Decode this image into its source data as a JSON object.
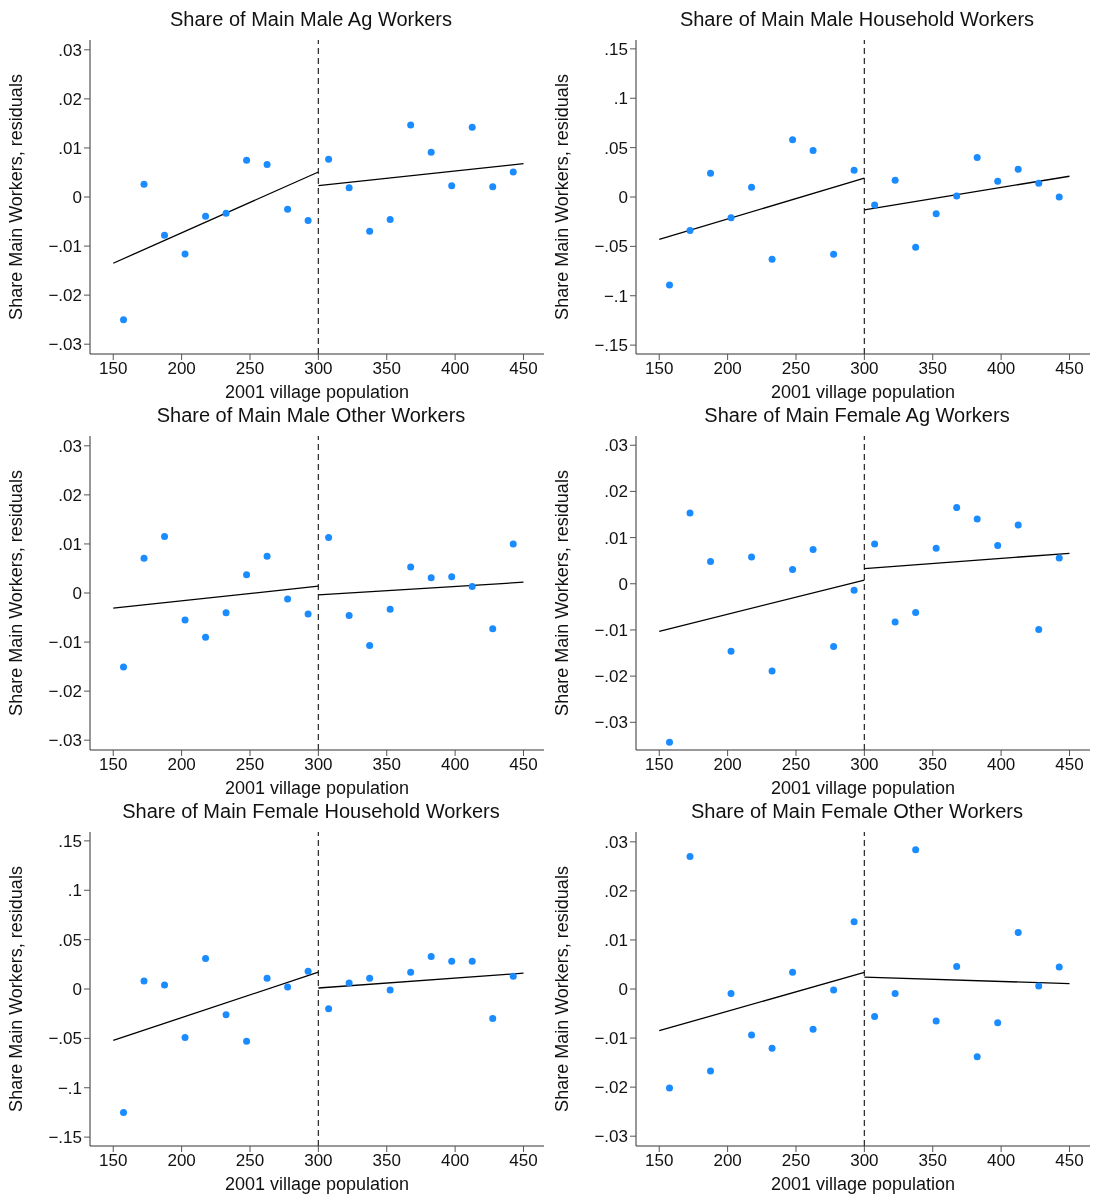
{
  "chart_data": [
    {
      "type": "scatter",
      "title": "Share of Main Male Ag Workers",
      "xlabel": "2001 village population",
      "ylabel": "Share Main Workers, residuals",
      "marker": "circle",
      "x": [
        157.5,
        172.5,
        187.5,
        202.5,
        217.5,
        232.5,
        247.5,
        262.5,
        277.5,
        292.5,
        307.5,
        322.5,
        337.5,
        352.5,
        367.5,
        382.5,
        397.5,
        412.5,
        427.5,
        442.5
      ],
      "xlim": [
        133,
        465
      ],
      "xticks": [
        150,
        200,
        250,
        300,
        350,
        400,
        450
      ],
      "ylim": [
        -0.032,
        0.032
      ],
      "yticks": [
        {
          "value": -0.03,
          "label": "−.03"
        },
        {
          "value": -0.02,
          "label": "−.02"
        },
        {
          "value": -0.01,
          "label": "−.01"
        },
        {
          "value": 0,
          "label": "0"
        },
        {
          "value": 0.01,
          "label": ".01"
        },
        {
          "value": 0.02,
          "label": ".02"
        },
        {
          "value": 0.03,
          "label": ".03"
        }
      ],
      "ref_lines": [
        {
          "axis": "x",
          "value": 300,
          "line_style": "dashed",
          "color": "#333333"
        }
      ],
      "series": [
        {
          "type": "scatter",
          "color": "#1a8cff",
          "values": [
            -0.025,
            0.0026,
            -0.0078,
            -0.0116,
            -0.0039,
            -0.0033,
            0.0075,
            0.0066,
            -0.0025,
            -0.0048,
            0.0077,
            0.0019,
            -0.007,
            -0.0046,
            0.0147,
            0.0091,
            0.0023,
            0.0142,
            0.0021,
            0.0051
          ]
        },
        {
          "type": "line",
          "color": "#000000",
          "marker": "none",
          "x": [
            150,
            300
          ],
          "values": [
            -0.0135,
            0.0051
          ]
        },
        {
          "type": "line",
          "color": "#000000",
          "marker": "none",
          "x": [
            300,
            450
          ],
          "values": [
            0.0023,
            0.0068
          ]
        }
      ]
    },
    {
      "type": "scatter",
      "title": "Share of Main Male Household Workers",
      "xlabel": "2001 village population",
      "ylabel": "Share Main Workers, residuals",
      "marker": "circle",
      "x": [
        157.5,
        172.5,
        187.5,
        202.5,
        217.5,
        232.5,
        247.5,
        262.5,
        277.5,
        292.5,
        307.5,
        322.5,
        337.5,
        352.5,
        367.5,
        382.5,
        397.5,
        412.5,
        427.5,
        442.5
      ],
      "xlim": [
        133,
        465
      ],
      "xticks": [
        150,
        200,
        250,
        300,
        350,
        400,
        450
      ],
      "ylim": [
        -0.159,
        0.159
      ],
      "yticks": [
        {
          "value": -0.15,
          "label": "−.15"
        },
        {
          "value": -0.1,
          "label": "−.1"
        },
        {
          "value": -0.05,
          "label": "−.05"
        },
        {
          "value": 0,
          "label": "0"
        },
        {
          "value": 0.05,
          "label": ".05"
        },
        {
          "value": 0.1,
          "label": ".1"
        },
        {
          "value": 0.15,
          "label": ".15"
        }
      ],
      "ref_lines": [
        {
          "axis": "x",
          "value": 300,
          "line_style": "dashed",
          "color": "#333333"
        }
      ],
      "series": [
        {
          "type": "scatter",
          "color": "#1a8cff",
          "values": [
            -0.089,
            -0.034,
            0.024,
            -0.021,
            0.01,
            -0.063,
            0.058,
            0.047,
            -0.058,
            0.027,
            -0.008,
            0.017,
            -0.051,
            -0.017,
            0.001,
            0.04,
            0.016,
            0.028,
            0.014,
            0
          ]
        },
        {
          "type": "line",
          "color": "#000000",
          "marker": "none",
          "x": [
            150,
            300
          ],
          "values": [
            -0.043,
            0.019
          ]
        },
        {
          "type": "line",
          "color": "#000000",
          "marker": "none",
          "x": [
            300,
            450
          ],
          "values": [
            -0.013,
            0.021
          ]
        }
      ]
    },
    {
      "type": "scatter",
      "title": "Share of Main Male Other Workers",
      "xlabel": "2001 village population",
      "ylabel": "Share Main Workers, residuals",
      "marker": "circle",
      "x": [
        157.5,
        172.5,
        187.5,
        202.5,
        217.5,
        232.5,
        247.5,
        262.5,
        277.5,
        292.5,
        307.5,
        322.5,
        337.5,
        352.5,
        367.5,
        382.5,
        397.5,
        412.5,
        427.5,
        442.5
      ],
      "xlim": [
        133,
        465
      ],
      "xticks": [
        150,
        200,
        250,
        300,
        350,
        400,
        450
      ],
      "ylim": [
        -0.032,
        0.032
      ],
      "yticks": [
        {
          "value": -0.03,
          "label": "−.03"
        },
        {
          "value": -0.02,
          "label": "−.02"
        },
        {
          "value": -0.01,
          "label": "−.01"
        },
        {
          "value": 0,
          "label": "0"
        },
        {
          "value": 0.01,
          "label": ".01"
        },
        {
          "value": 0.02,
          "label": ".02"
        },
        {
          "value": 0.03,
          "label": ".03"
        }
      ],
      "ref_lines": [
        {
          "axis": "x",
          "value": 300,
          "line_style": "dashed",
          "color": "#333333"
        }
      ],
      "series": [
        {
          "type": "scatter",
          "color": "#1a8cff",
          "values": [
            -0.0151,
            0.0071,
            0.0115,
            -0.0055,
            -0.009,
            -0.004,
            0.0037,
            0.0075,
            -0.0012,
            -0.0043,
            0.0113,
            -0.0046,
            -0.0107,
            -0.0033,
            0.0053,
            0.0031,
            0.0033,
            0.0013,
            -0.0073,
            0.01
          ]
        },
        {
          "type": "line",
          "color": "#000000",
          "marker": "none",
          "x": [
            150,
            300
          ],
          "values": [
            -0.0031,
            0.0014
          ]
        },
        {
          "type": "line",
          "color": "#000000",
          "marker": "none",
          "x": [
            300,
            450
          ],
          "values": [
            -0.0004,
            0.0022
          ]
        }
      ]
    },
    {
      "type": "scatter",
      "title": "Share of Main Female Ag Workers",
      "xlabel": "2001 village population",
      "ylabel": "Share Main Workers, residuals",
      "marker": "circle",
      "x": [
        157.5,
        172.5,
        187.5,
        202.5,
        217.5,
        232.5,
        247.5,
        262.5,
        277.5,
        292.5,
        307.5,
        322.5,
        337.5,
        352.5,
        367.5,
        382.5,
        397.5,
        412.5,
        427.5,
        442.5
      ],
      "xlim": [
        133,
        465
      ],
      "xticks": [
        150,
        200,
        250,
        300,
        350,
        400,
        450
      ],
      "ylim": [
        -0.036,
        0.032
      ],
      "yticks": [
        {
          "value": -0.03,
          "label": "−.03"
        },
        {
          "value": -0.02,
          "label": "−.02"
        },
        {
          "value": -0.01,
          "label": "−.01"
        },
        {
          "value": 0,
          "label": "0"
        },
        {
          "value": 0.01,
          "label": ".01"
        },
        {
          "value": 0.02,
          "label": ".02"
        },
        {
          "value": 0.03,
          "label": ".03"
        }
      ],
      "ref_lines": [
        {
          "axis": "x",
          "value": 300,
          "line_style": "dashed",
          "color": "#333333"
        }
      ],
      "series": [
        {
          "type": "scatter",
          "color": "#1a8cff",
          "values": [
            -0.0343,
            0.0153,
            0.0048,
            -0.0146,
            0.0058,
            -0.0189,
            0.0031,
            0.0074,
            -0.0136,
            -0.0014,
            0.0086,
            -0.0083,
            -0.0062,
            0.0077,
            0.0165,
            0.014,
            0.0083,
            0.0127,
            -0.0099,
            0.0056
          ]
        },
        {
          "type": "line",
          "color": "#000000",
          "marker": "none",
          "x": [
            150,
            300
          ],
          "values": [
            -0.0103,
            0.0008
          ]
        },
        {
          "type": "line",
          "color": "#000000",
          "marker": "none",
          "x": [
            300,
            450
          ],
          "values": [
            0.0033,
            0.0066
          ]
        }
      ]
    },
    {
      "type": "scatter",
      "title": "Share of Main Female Household Workers",
      "xlabel": "2001 village population",
      "ylabel": "Share Main Workers, residuals",
      "marker": "circle",
      "x": [
        157.5,
        172.5,
        187.5,
        202.5,
        217.5,
        232.5,
        247.5,
        262.5,
        277.5,
        292.5,
        307.5,
        322.5,
        337.5,
        352.5,
        367.5,
        382.5,
        397.5,
        412.5,
        427.5,
        442.5
      ],
      "xlim": [
        133,
        465
      ],
      "xticks": [
        150,
        200,
        250,
        300,
        350,
        400,
        450
      ],
      "ylim": [
        -0.159,
        0.159
      ],
      "yticks": [
        {
          "value": -0.15,
          "label": "−.15"
        },
        {
          "value": -0.1,
          "label": "−.1"
        },
        {
          "value": -0.05,
          "label": "−.05"
        },
        {
          "value": 0,
          "label": "0"
        },
        {
          "value": 0.05,
          "label": ".05"
        },
        {
          "value": 0.1,
          "label": ".1"
        },
        {
          "value": 0.15,
          "label": ".15"
        }
      ],
      "ref_lines": [
        {
          "axis": "x",
          "value": 300,
          "line_style": "dashed",
          "color": "#333333"
        }
      ],
      "series": [
        {
          "type": "scatter",
          "color": "#1a8cff",
          "values": [
            -0.125,
            0.008,
            0.004,
            -0.049,
            0.031,
            -0.026,
            -0.053,
            0.011,
            0.002,
            0.018,
            -0.02,
            0.006,
            0.011,
            -0.001,
            0.017,
            0.033,
            0.028,
            0.028,
            -0.03,
            0.013
          ]
        },
        {
          "type": "line",
          "color": "#000000",
          "marker": "none",
          "x": [
            150,
            300
          ],
          "values": [
            -0.052,
            0.017
          ]
        },
        {
          "type": "line",
          "color": "#000000",
          "marker": "none",
          "x": [
            300,
            450
          ],
          "values": [
            0.001,
            0.016
          ]
        }
      ]
    },
    {
      "type": "scatter",
      "title": "Share of Main Female Other Workers",
      "xlabel": "2001 village population",
      "ylabel": "Share Main Workers, residuals",
      "marker": "circle",
      "x": [
        157.5,
        172.5,
        187.5,
        202.5,
        217.5,
        232.5,
        247.5,
        262.5,
        277.5,
        292.5,
        307.5,
        322.5,
        337.5,
        352.5,
        367.5,
        382.5,
        397.5,
        412.5,
        427.5,
        442.5
      ],
      "xlim": [
        133,
        465
      ],
      "xticks": [
        150,
        200,
        250,
        300,
        350,
        400,
        450
      ],
      "ylim": [
        -0.032,
        0.032
      ],
      "yticks": [
        {
          "value": -0.03,
          "label": "−.03"
        },
        {
          "value": -0.02,
          "label": "−.02"
        },
        {
          "value": -0.01,
          "label": "−.01"
        },
        {
          "value": 0,
          "label": "0"
        },
        {
          "value": 0.01,
          "label": ".01"
        },
        {
          "value": 0.02,
          "label": ".02"
        },
        {
          "value": 0.03,
          "label": ".03"
        }
      ],
      "ref_lines": [
        {
          "axis": "x",
          "value": 300,
          "line_style": "dashed",
          "color": "#333333"
        }
      ],
      "series": [
        {
          "type": "scatter",
          "color": "#1a8cff",
          "values": [
            -0.0202,
            0.027,
            -0.0167,
            -0.0009,
            -0.0094,
            -0.0121,
            0.0034,
            -0.0082,
            -0.0002,
            0.0137,
            -0.0056,
            -0.0009,
            0.0284,
            -0.0065,
            0.0046,
            -0.0138,
            -0.0069,
            0.0115,
            0.0006,
            0.0045
          ]
        },
        {
          "type": "line",
          "color": "#000000",
          "marker": "none",
          "x": [
            150,
            300
          ],
          "values": [
            -0.0085,
            0.0034
          ]
        },
        {
          "type": "line",
          "color": "#000000",
          "marker": "none",
          "x": [
            300,
            450
          ],
          "values": [
            0.0024,
            0.0011
          ]
        }
      ]
    }
  ]
}
